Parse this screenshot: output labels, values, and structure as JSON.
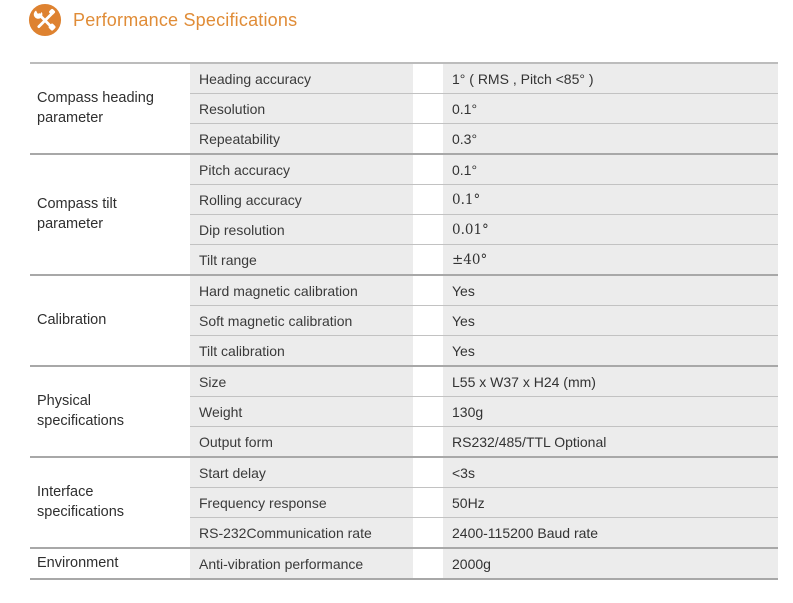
{
  "header": {
    "title": "Performance Specifications",
    "icon": "crossed-tools-icon",
    "accent_color": "#de8230"
  },
  "colors": {
    "title_orange": "#e08c37",
    "cell_background": "#ececec",
    "row_line": "#c2c2c2",
    "group_line": "#a8a8a8",
    "text": "#383838"
  },
  "table": {
    "groups": [
      {
        "category": "Compass heading parameter",
        "rows": [
          {
            "param": "Heading accuracy",
            "value": "1° ( RMS , Pitch <85° )"
          },
          {
            "param": "Resolution",
            "value": "0.1°"
          },
          {
            "param": "Repeatability",
            "value": "0.3°"
          }
        ]
      },
      {
        "category": "Compass tilt parameter",
        "rows": [
          {
            "param": "Pitch accuracy",
            "value": "0.1°"
          },
          {
            "param": "Rolling accuracy",
            "value": "0.1°",
            "value_style": "serif"
          },
          {
            "param": "Dip resolution",
            "value": "0.01°",
            "value_style": "serif"
          },
          {
            "param": "Tilt range",
            "value": "±40°",
            "value_style": "serif"
          }
        ]
      },
      {
        "category": "Calibration",
        "rows": [
          {
            "param": "Hard magnetic calibration",
            "value": "Yes"
          },
          {
            "param": "Soft magnetic calibration",
            "value": "Yes"
          },
          {
            "param": "Tilt calibration",
            "value": "Yes"
          }
        ]
      },
      {
        "category": "Physical specifications",
        "rows": [
          {
            "param": "Size",
            "value": "L55 x W37 x H24 (mm)"
          },
          {
            "param": "Weight",
            "value": "130g"
          },
          {
            "param": "Output form",
            "value": "RS232/485/TTL Optional"
          }
        ]
      },
      {
        "category": "Interface specifications",
        "rows": [
          {
            "param": "Start delay",
            "value": "<3s"
          },
          {
            "param": "Frequency response",
            "value": "50Hz"
          },
          {
            "param": "RS-232Communication rate",
            "value": "2400-115200 Baud rate"
          }
        ]
      },
      {
        "category": "Environment",
        "rows": [
          {
            "param": "Anti-vibration performance",
            "value": "2000g"
          }
        ]
      }
    ]
  }
}
